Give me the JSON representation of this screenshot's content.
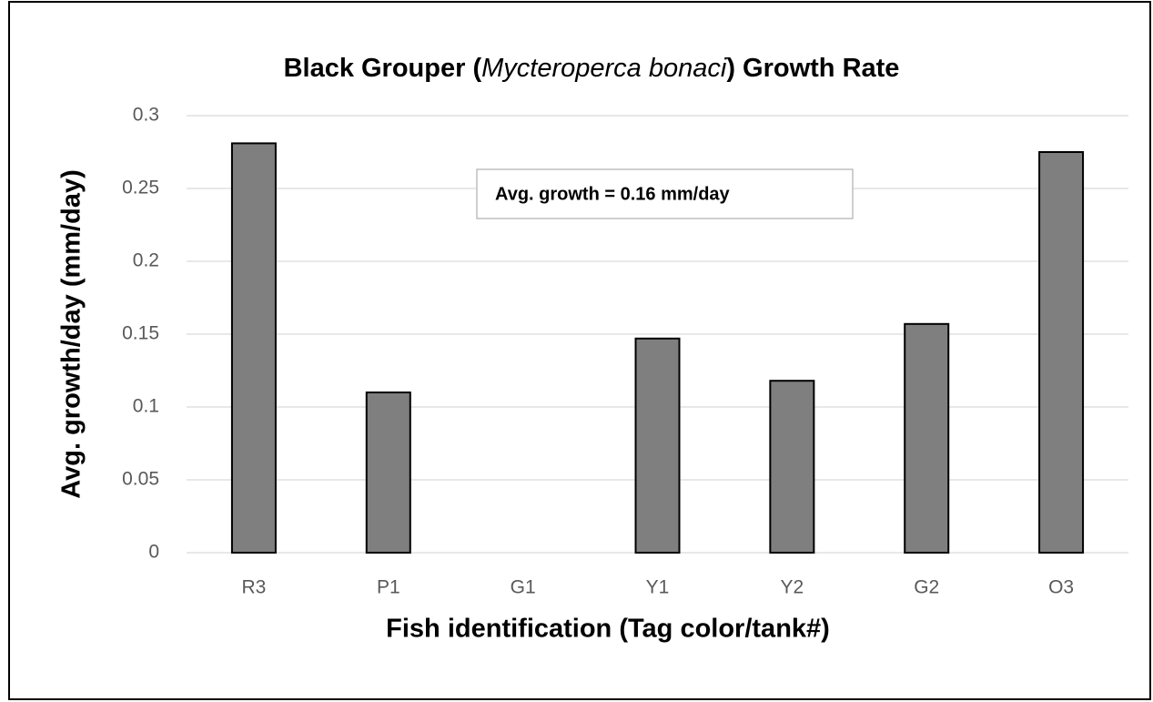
{
  "chart_data": {
    "type": "bar",
    "title": [
      "Black Grouper (",
      "Mycteroperca bonaci",
      ") Growth Rate"
    ],
    "xlabel": "Fish identification (Tag color/tank#)",
    "ylabel": "Avg. growth/day (mm/day)",
    "annotation": "Avg. growth = 0.16 mm/day",
    "categories": [
      "R3",
      "P1",
      "G1",
      "Y1",
      "Y2",
      "G2",
      "O3"
    ],
    "values": [
      0.281,
      0.11,
      0,
      0.147,
      0.118,
      0.157,
      0.275
    ],
    "color": "#7f7f7f",
    "ylim": [
      0,
      0.3
    ],
    "yticks": [
      0,
      0.05,
      0.1,
      0.15,
      0.2,
      0.25,
      0.3
    ],
    "grid": true
  }
}
